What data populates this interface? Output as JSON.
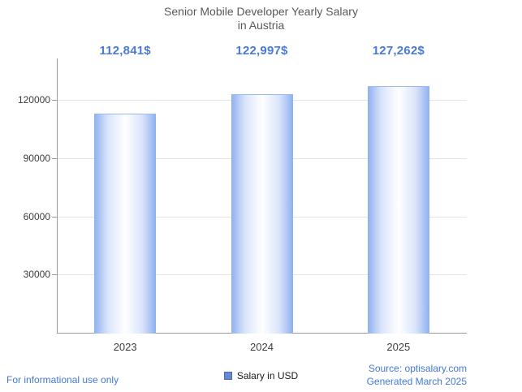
{
  "title": {
    "line1": "Senior Mobile Developer Yearly Salary",
    "line2": "in Austria"
  },
  "chart_data": {
    "type": "bar",
    "title": "Senior Mobile Developer Yearly Salary in Austria",
    "categories": [
      "2023",
      "2024",
      "2025"
    ],
    "series": [
      {
        "name": "Salary in USD",
        "values": [
          112841,
          122997,
          127262
        ],
        "value_labels": [
          "112,841$",
          "122,997$",
          "127,262$"
        ]
      }
    ],
    "xlabel": "",
    "ylabel": "",
    "ylim": [
      0,
      140000
    ],
    "yticks": [
      30000,
      60000,
      90000,
      120000
    ],
    "grid": true,
    "legend_position": "bottom",
    "bar_gradient": [
      "#8fb0ef",
      "#ffffff",
      "#8fb0ef"
    ]
  },
  "legend": {
    "swatch_color": "#6787d0",
    "label": "Salary in USD"
  },
  "footer": {
    "left_note": "For informational use only",
    "source": "Source: optisalary.com",
    "generated": "Generated March 2025"
  },
  "colors": {
    "accent_blue": "#4a79d8",
    "title_gray": "#595959",
    "axis_gray": "#9a9a9a",
    "grid_gray": "#e4e4e4"
  }
}
